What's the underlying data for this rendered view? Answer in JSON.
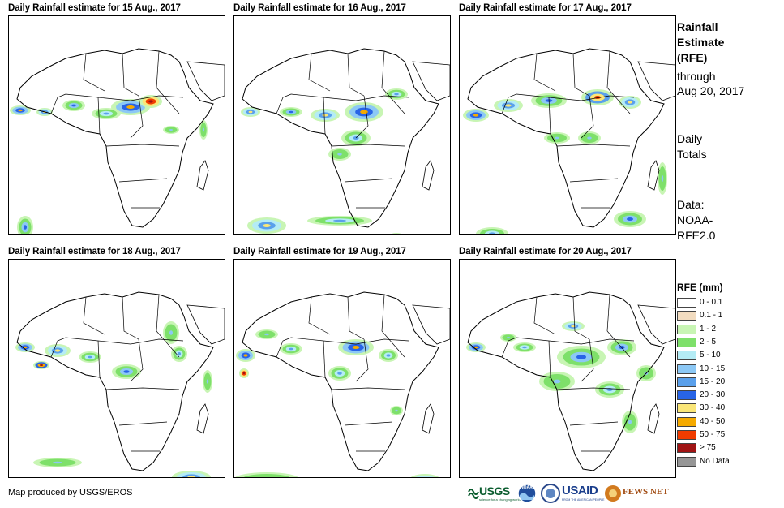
{
  "panels": [
    {
      "title": "Daily Rainfall estimate for 15 Aug., 2017"
    },
    {
      "title": "Daily Rainfall estimate for 16 Aug., 2017"
    },
    {
      "title": "Daily Rainfall estimate for 17 Aug., 2017"
    },
    {
      "title": "Daily Rainfall estimate for 18 Aug., 2017"
    },
    {
      "title": "Daily Rainfall estimate for 19 Aug., 2017"
    },
    {
      "title": "Daily Rainfall estimate for 20 Aug., 2017"
    }
  ],
  "side": {
    "title_line1": "Rainfall",
    "title_line2": "Estimate",
    "title_line3": "(RFE)",
    "through_line1": "through",
    "through_line2": "Aug 20, 2017",
    "totals_line1": "Daily",
    "totals_line2": "Totals",
    "data_line1": "Data:",
    "data_line2": "NOAA-",
    "data_line3": "RFE2.0"
  },
  "legend": {
    "title": "RFE (mm)",
    "items": [
      {
        "label": "0 - 0.1",
        "color": "#ffffff"
      },
      {
        "label": "0.1 - 1",
        "color": "#f2dcc0"
      },
      {
        "label": "1 - 2",
        "color": "#c8f5b4"
      },
      {
        "label": "2 - 5",
        "color": "#7ee06a"
      },
      {
        "label": "5 - 10",
        "color": "#b4ecf5"
      },
      {
        "label": "10 - 15",
        "color": "#8cc8f5"
      },
      {
        "label": "15 - 20",
        "color": "#5aa0eb"
      },
      {
        "label": "20 - 30",
        "color": "#2864e6"
      },
      {
        "label": "30 - 40",
        "color": "#fae678"
      },
      {
        "label": "40 - 50",
        "color": "#f5aa00"
      },
      {
        "label": "50 - 75",
        "color": "#f03c00"
      },
      {
        "label": "> 75",
        "color": "#a01414"
      },
      {
        "label": "No Data",
        "color": "#969696"
      }
    ]
  },
  "credit": "Map produced by USGS/EROS",
  "logos": {
    "usgs": "USGS",
    "usgs_tagline": "science for a changing world",
    "noaa": "NOAA",
    "usaid": "USAID",
    "usaid_tagline": "FROM THE AMERICAN PEOPLE",
    "fewsnet": "FEWS NET"
  }
}
